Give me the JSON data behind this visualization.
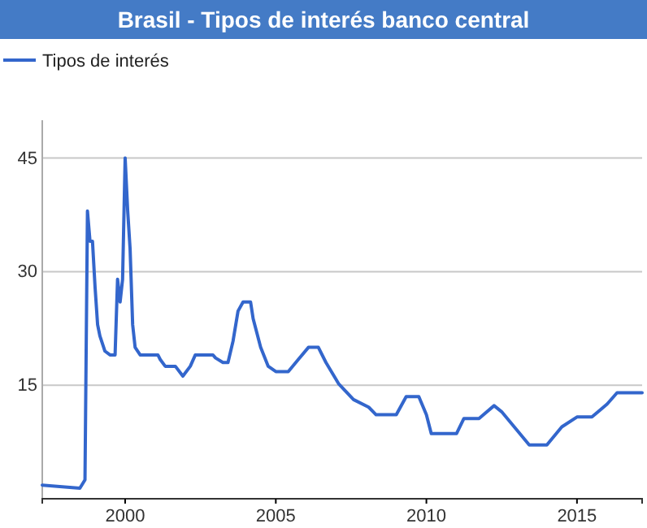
{
  "chart_data": {
    "type": "line",
    "title": "Brasil - Tipos de interés banco central",
    "x": [
      "1997-04",
      "1998-07",
      "1998-09",
      "1998-10",
      "1998-11",
      "1998-12",
      "1999-01",
      "1999-02",
      "1999-03",
      "1999-05",
      "1999-07",
      "1999-09",
      "1999-10",
      "1999-11",
      "1999-12",
      "2000-01",
      "2000-02",
      "2000-03",
      "2000-04",
      "2000-05",
      "2000-07",
      "2001-02",
      "2001-03",
      "2001-05",
      "2001-09",
      "2001-12",
      "2002-03",
      "2002-05",
      "2002-12",
      "2003-01",
      "2003-04",
      "2003-06",
      "2003-08",
      "2003-10",
      "2003-12",
      "2004-03",
      "2004-04",
      "2004-07",
      "2004-10",
      "2005-01",
      "2005-06",
      "2005-10",
      "2006-02",
      "2006-06",
      "2006-09",
      "2007-02",
      "2007-08",
      "2008-02",
      "2008-05",
      "2009-01",
      "2009-05",
      "2009-10",
      "2010-01",
      "2010-03",
      "2011-01",
      "2011-04",
      "2011-10",
      "2012-04",
      "2012-07",
      "2013-01",
      "2013-06",
      "2014-01",
      "2014-07",
      "2015-01",
      "2015-07",
      "2016-01",
      "2016-05",
      "2017-03"
    ],
    "series": [
      {
        "name": "Tipos de interés",
        "color": "#3366cc",
        "values": [
          1.8,
          1.4,
          2.5,
          38,
          34,
          34,
          28,
          23,
          21.5,
          19.5,
          19,
          19,
          29,
          26,
          29,
          45,
          38,
          33,
          23,
          20,
          19,
          19,
          18.4,
          17.5,
          17.5,
          16.2,
          17.5,
          19,
          19,
          18.6,
          18,
          18,
          20.8,
          24.8,
          26,
          26,
          23.8,
          20,
          17.5,
          16.8,
          16.8,
          18.4,
          20,
          20,
          18,
          15.2,
          13.1,
          12.1,
          11.1,
          11.1,
          13.5,
          13.5,
          11.1,
          8.6,
          8.6,
          10.6,
          10.6,
          12.3,
          11.5,
          9.1,
          7.1,
          7.1,
          9.5,
          10.8,
          10.8,
          12.5,
          14,
          14
        ]
      }
    ],
    "xlim": [
      "1997-04",
      "2017-03"
    ],
    "xticks": [
      {
        "value": "2000",
        "label": "2000"
      },
      {
        "value": "2005",
        "label": "2005"
      },
      {
        "value": "2010",
        "label": "2010"
      },
      {
        "value": "2015",
        "label": "2015"
      }
    ],
    "ylim": [
      0,
      50
    ],
    "yticks": [
      15,
      30,
      45
    ],
    "grid": "y",
    "legend": "top left",
    "line_style": "solid",
    "marker": "none"
  }
}
